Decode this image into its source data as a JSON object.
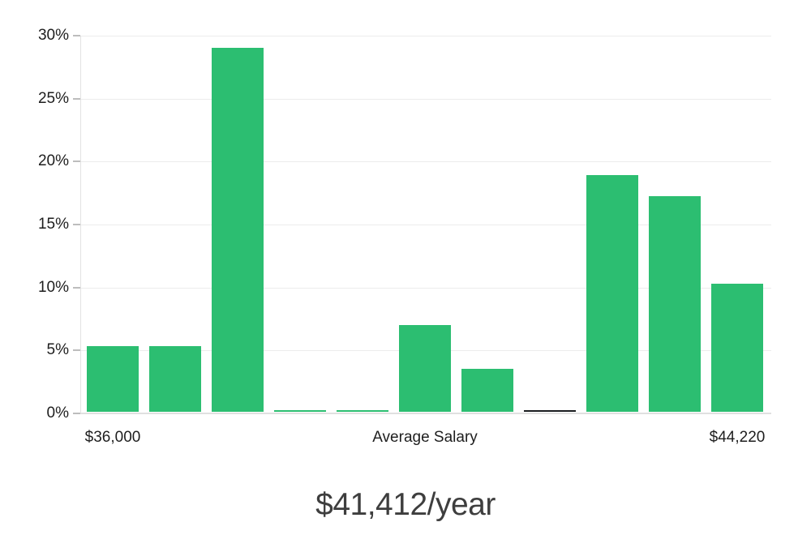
{
  "chart_data": {
    "type": "bar",
    "title": "$41,412/year",
    "xlabel": "",
    "ylabel": "",
    "ylim": [
      0,
      30
    ],
    "grid": true,
    "legend": "none",
    "bar_color": "#2cbe71",
    "highlight_bar_index": 7,
    "highlight_bar_color": "#191c1f",
    "yticks": [
      {
        "value": 0,
        "label": "0%"
      },
      {
        "value": 5,
        "label": "5%"
      },
      {
        "value": 10,
        "label": "10%"
      },
      {
        "value": 15,
        "label": "15%"
      },
      {
        "value": 20,
        "label": "20%"
      },
      {
        "value": 25,
        "label": "25%"
      },
      {
        "value": 30,
        "label": "30%"
      }
    ],
    "bars": [
      {
        "value": 5.2
      },
      {
        "value": 5.2
      },
      {
        "value": 28.9
      },
      {
        "value": 0.1
      },
      {
        "value": 0.1
      },
      {
        "value": 6.9
      },
      {
        "value": 3.4
      },
      {
        "value": 0.1,
        "color": "#191c1f"
      },
      {
        "value": 18.8
      },
      {
        "value": 17.1
      },
      {
        "value": 10.2
      }
    ],
    "x_axis_labels": [
      {
        "bar_index": 0,
        "label": "$36,000"
      },
      {
        "bar_index": 5,
        "label": "Average Salary"
      },
      {
        "bar_index": 10,
        "label": "$44,220"
      }
    ]
  },
  "colors": {
    "background": "#ffffff",
    "bar_green": "#2cbe71",
    "highlight_black": "#191c1f",
    "gridline": "#ececec",
    "axis_line": "#e0e0e0",
    "tick_mark": "#bdbdbd",
    "axis_label_text": "#1e1e1e",
    "title_text": "#3e3e3e"
  }
}
